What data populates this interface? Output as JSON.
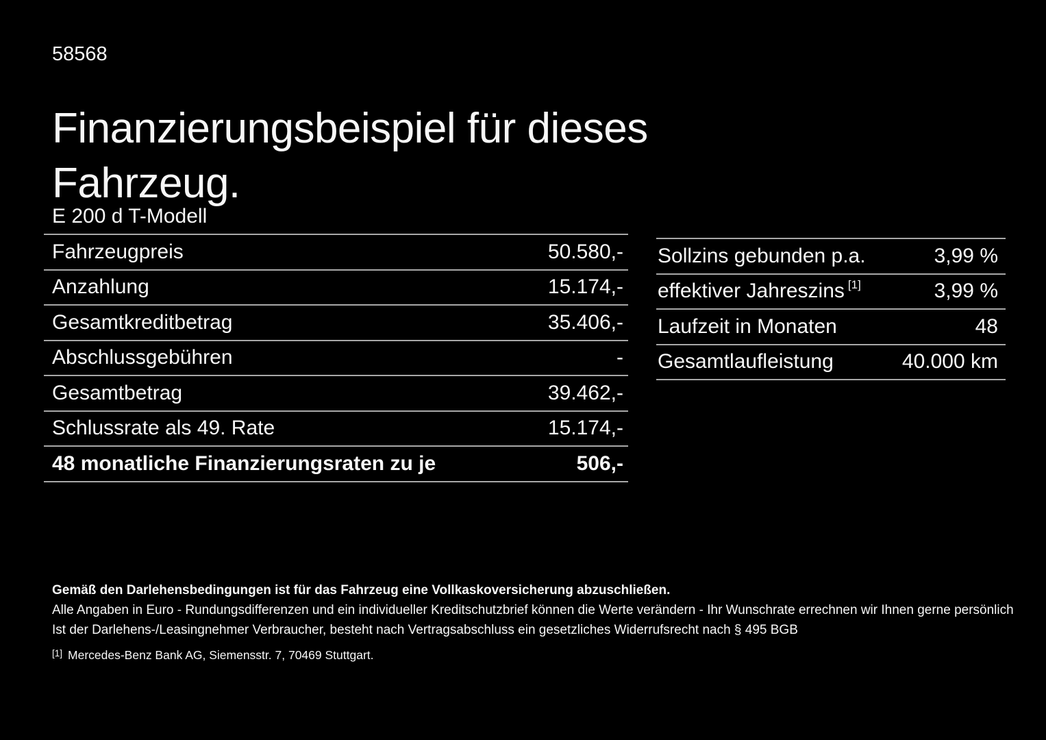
{
  "colors": {
    "background": "#000000",
    "text": "#f7f7f7",
    "divider": "#a8a8a8"
  },
  "header": {
    "doc_number": "58568",
    "title": "Finanzierungsbeispiel für dieses Fahrzeug.",
    "model": "E 200 d T-Modell"
  },
  "finance_table": {
    "rows": [
      {
        "label": "Fahrzeugpreis",
        "value": "50.580,-"
      },
      {
        "label": "Anzahlung",
        "value": "15.174,-"
      },
      {
        "label": "Gesamtkreditbetrag",
        "value": "35.406,-"
      },
      {
        "label": "Abschlussgebühren",
        "value": "-"
      },
      {
        "label": "Gesamtbetrag",
        "value": "39.462,-"
      },
      {
        "label": "Schlussrate als 49. Rate",
        "value": "15.174,-"
      },
      {
        "label": "48 monatliche Finanzierungsraten zu je",
        "value": "506,-"
      }
    ]
  },
  "conditions_table": {
    "rows": [
      {
        "label": "Sollzins gebunden p.a.",
        "footnote_ref": "",
        "value": "3,99 %"
      },
      {
        "label": "effektiver Jahreszins",
        "footnote_ref": "[1]",
        "value": "3,99 %"
      },
      {
        "label": "Laufzeit in Monaten",
        "footnote_ref": "",
        "value": "48"
      },
      {
        "label": "Gesamtlaufleistung",
        "footnote_ref": "",
        "value": "40.000 km"
      }
    ]
  },
  "footer": {
    "insurance_note": "Gemäß den Darlehensbedingungen ist für das Fahrzeug eine Vollkaskoversicherung abzuschließen.",
    "rounding_note": "Alle Angaben in Euro - Rundungsdifferenzen und ein individueller Kreditschutzbrief können die Werte verändern - Ihr Wunschrate errechnen wir Ihnen gerne persönlich",
    "withdrawal_note": "Ist der Darlehens-/Leasingnehmer Verbraucher, besteht nach Vertragsabschluss ein gesetzliches Widerrufsrecht nach § 495 BGB",
    "footnote_marker": "[1]",
    "footnote_text": "Mercedes-Benz Bank AG, Siemensstr. 7, 70469 Stuttgart."
  }
}
